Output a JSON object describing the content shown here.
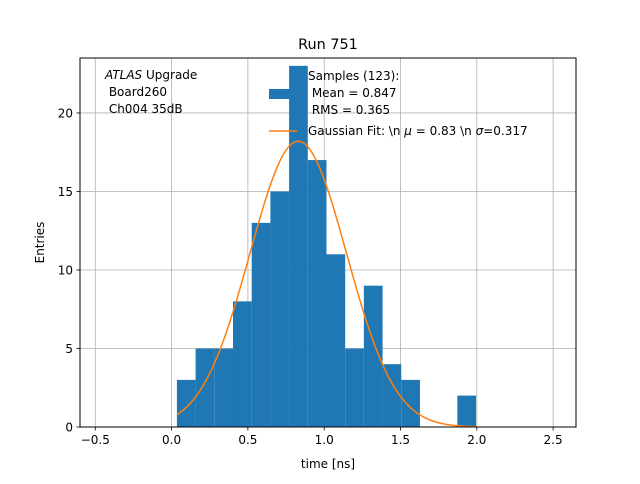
{
  "chart_data": {
    "type": "bar",
    "title": "Run 751",
    "xlabel": "time [ns]",
    "ylabel": "Entries",
    "xlim": [
      -0.6,
      2.65
    ],
    "ylim": [
      0,
      23.5
    ],
    "grid": true,
    "xticks": [
      -0.5,
      0.0,
      0.5,
      1.0,
      1.5,
      2.0,
      2.5
    ],
    "xtick_labels": [
      "−0.5",
      "0.0",
      "0.5",
      "1.0",
      "1.5",
      "2.0",
      "2.5"
    ],
    "yticks": [
      0,
      5,
      10,
      15,
      20
    ],
    "ytick_labels": [
      "0",
      "5",
      "10",
      "15",
      "20"
    ],
    "histogram": {
      "bin_width": 0.1225,
      "bins": [
        {
          "x0": 0.035,
          "x1": 0.1575,
          "count": 3
        },
        {
          "x0": 0.1575,
          "x1": 0.28,
          "count": 5
        },
        {
          "x0": 0.28,
          "x1": 0.4025,
          "count": 5
        },
        {
          "x0": 0.4025,
          "x1": 0.525,
          "count": 8
        },
        {
          "x0": 0.525,
          "x1": 0.6475,
          "count": 13
        },
        {
          "x0": 0.6475,
          "x1": 0.77,
          "count": 15
        },
        {
          "x0": 0.77,
          "x1": 0.8925,
          "count": 23
        },
        {
          "x0": 0.8925,
          "x1": 1.015,
          "count": 17
        },
        {
          "x0": 1.015,
          "x1": 1.1375,
          "count": 11
        },
        {
          "x0": 1.1375,
          "x1": 1.26,
          "count": 5
        },
        {
          "x0": 1.26,
          "x1": 1.3825,
          "count": 9
        },
        {
          "x0": 1.3825,
          "x1": 1.505,
          "count": 4
        },
        {
          "x0": 1.505,
          "x1": 1.6275,
          "count": 3
        },
        {
          "x0": 1.6275,
          "x1": 1.75,
          "count": 0
        },
        {
          "x0": 1.75,
          "x1": 1.8725,
          "count": 0
        },
        {
          "x0": 1.8725,
          "x1": 1.995,
          "count": 2
        }
      ],
      "color": "#1f77b4"
    },
    "fit": {
      "mu": 0.83,
      "sigma": 0.317,
      "amplitude": 18.2,
      "x_range": [
        0.035,
        1.995
      ],
      "color": "#ff7f0e"
    },
    "annotation": {
      "line1_italic": "ATLAS",
      "line1_rest": " Upgrade",
      "line2": " Board260",
      "line3": " Ch004 35dB"
    },
    "legend": {
      "placement": "top-right",
      "entries": [
        {
          "kind": "patch",
          "color": "#1f77b4",
          "lines": [
            "Samples (123):",
            " Mean = 0.847",
            " RMS = 0.365"
          ]
        },
        {
          "kind": "line",
          "color": "#ff7f0e",
          "prefix": "Gaussian Fit: \\n ",
          "mu_symbol": "μ",
          "mid": " = 0.83 \\n ",
          "sigma_symbol": "σ",
          "suffix": "=0.317"
        }
      ]
    }
  }
}
